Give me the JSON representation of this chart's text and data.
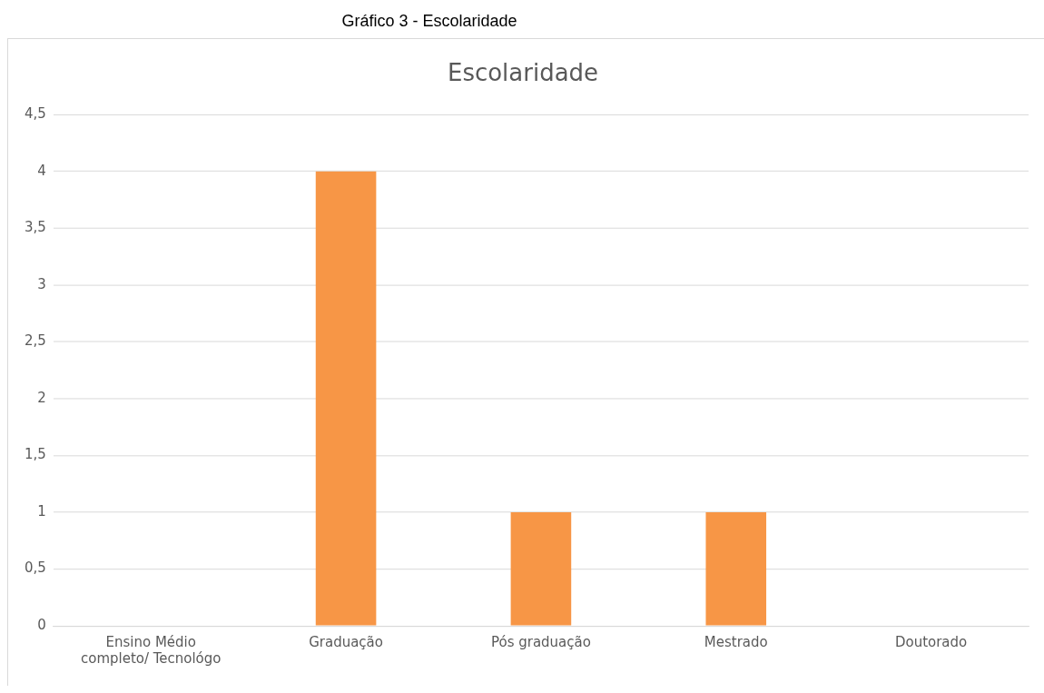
{
  "chart_data": {
    "type": "bar",
    "title": "Escolaridade",
    "annotations": [
      "Gráfico 3 - Escolaridade"
    ],
    "categories": [
      "Ensino Médio completo/ Tecnológo",
      "Graduação",
      "Pós graduação",
      "Mestrado",
      "Doutorado"
    ],
    "values": [
      0,
      4,
      1,
      1,
      0
    ],
    "color": "#f79646",
    "ylim": [
      0,
      4.5
    ],
    "yticks": [
      0,
      {
        "value": 0.5,
        "label": "0,5"
      },
      1,
      {
        "value": 1.5,
        "label": "1,5"
      },
      2,
      {
        "value": 2.5,
        "label": "2,5"
      },
      3,
      {
        "value": 3.5,
        "label": "3,5"
      },
      4,
      {
        "value": 4.5,
        "label": "4,5"
      }
    ],
    "grid": "y",
    "legend": false
  }
}
